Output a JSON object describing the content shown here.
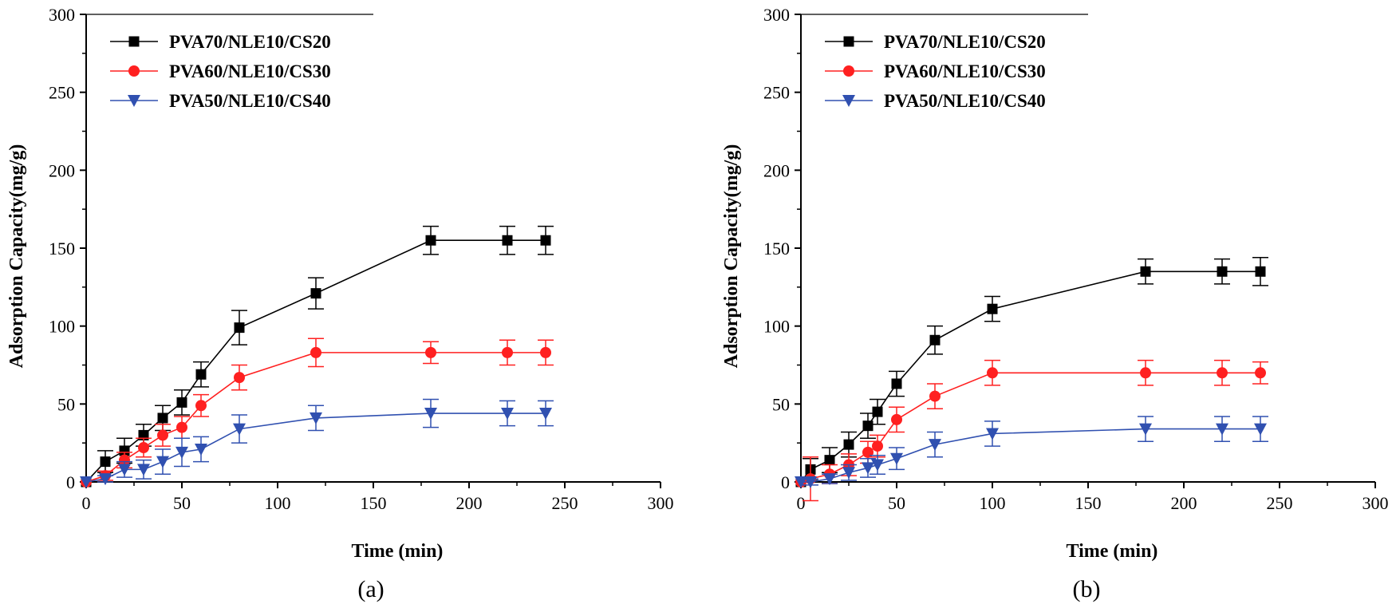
{
  "chart_data": [
    {
      "type": "line",
      "panel": "(a)",
      "caption": "(a)",
      "xlabel": "Time (min)",
      "ylabel": "Adsorption Capacity(mg/g)",
      "xlim": [
        0,
        300
      ],
      "ylim": [
        0,
        300
      ],
      "xticks": [
        "0",
        "50",
        "100",
        "150",
        "200",
        "250",
        "300"
      ],
      "yticks": [
        "0",
        "50",
        "100",
        "150",
        "200",
        "250",
        "300"
      ],
      "legend_position": "top-left",
      "series": [
        {
          "name": "PVA70/NLE10/CS20",
          "color": "#000000",
          "marker": "square",
          "x": [
            0,
            10,
            20,
            30,
            40,
            50,
            60,
            80,
            120,
            180,
            220,
            240
          ],
          "y": [
            0,
            13,
            20,
            30,
            41,
            51,
            69,
            99,
            121,
            155,
            155,
            155
          ],
          "err": [
            0,
            7,
            8,
            7,
            8,
            8,
            8,
            11,
            10,
            9,
            9,
            9
          ]
        },
        {
          "name": "PVA60/NLE10/CS30",
          "color": "#ff2020",
          "marker": "circle",
          "x": [
            0,
            10,
            20,
            30,
            40,
            50,
            60,
            80,
            120,
            180,
            220,
            240
          ],
          "y": [
            0,
            4,
            14,
            22,
            30,
            35,
            49,
            67,
            83,
            83,
            83,
            83
          ],
          "err": [
            0,
            3,
            5,
            6,
            7,
            7,
            7,
            8,
            9,
            7,
            8,
            8
          ]
        },
        {
          "name": "PVA50/NLE10/CS40",
          "color": "#3050b0",
          "marker": "triangle",
          "x": [
            0,
            10,
            20,
            30,
            40,
            50,
            60,
            80,
            120,
            180,
            220,
            240
          ],
          "y": [
            0,
            2,
            8,
            8,
            13,
            19,
            21,
            34,
            41,
            44,
            44,
            44
          ],
          "err": [
            0,
            2,
            5,
            6,
            8,
            9,
            8,
            9,
            8,
            9,
            8,
            8
          ]
        }
      ]
    },
    {
      "type": "line",
      "panel": "(b)",
      "caption": "(b)",
      "xlabel": "Time (min)",
      "ylabel": "Adsorption Capacity(mg/g)",
      "xlim": [
        0,
        300
      ],
      "ylim": [
        0,
        300
      ],
      "xticks": [
        "0",
        "50",
        "100",
        "150",
        "200",
        "250",
        "300"
      ],
      "yticks": [
        "0",
        "50",
        "100",
        "150",
        "200",
        "250",
        "300"
      ],
      "legend_position": "top-left",
      "series": [
        {
          "name": "PVA70/NLE10/CS20",
          "color": "#000000",
          "marker": "square",
          "x": [
            0,
            5,
            15,
            25,
            35,
            40,
            50,
            70,
            100,
            180,
            220,
            240
          ],
          "y": [
            0,
            8,
            14,
            24,
            36,
            45,
            63,
            91,
            111,
            135,
            135,
            135
          ],
          "err": [
            0,
            7,
            8,
            8,
            8,
            8,
            8,
            9,
            8,
            8,
            8,
            9
          ]
        },
        {
          "name": "PVA60/NLE10/CS30",
          "color": "#ff2020",
          "marker": "circle",
          "x": [
            0,
            5,
            15,
            25,
            35,
            40,
            50,
            70,
            100,
            180,
            220,
            240
          ],
          "y": [
            0,
            2,
            5,
            11,
            19,
            23,
            40,
            55,
            70,
            70,
            70,
            70
          ],
          "err": [
            0,
            14,
            6,
            7,
            7,
            7,
            8,
            8,
            8,
            8,
            8,
            7
          ]
        },
        {
          "name": "PVA50/NLE10/CS40",
          "color": "#3050b0",
          "marker": "triangle",
          "x": [
            0,
            5,
            15,
            25,
            35,
            40,
            50,
            70,
            100,
            180,
            220,
            240
          ],
          "y": [
            0,
            0,
            2,
            6,
            9,
            11,
            15,
            24,
            31,
            34,
            34,
            34
          ],
          "err": [
            0,
            2,
            3,
            5,
            6,
            6,
            7,
            8,
            8,
            8,
            8,
            8
          ]
        }
      ]
    }
  ]
}
